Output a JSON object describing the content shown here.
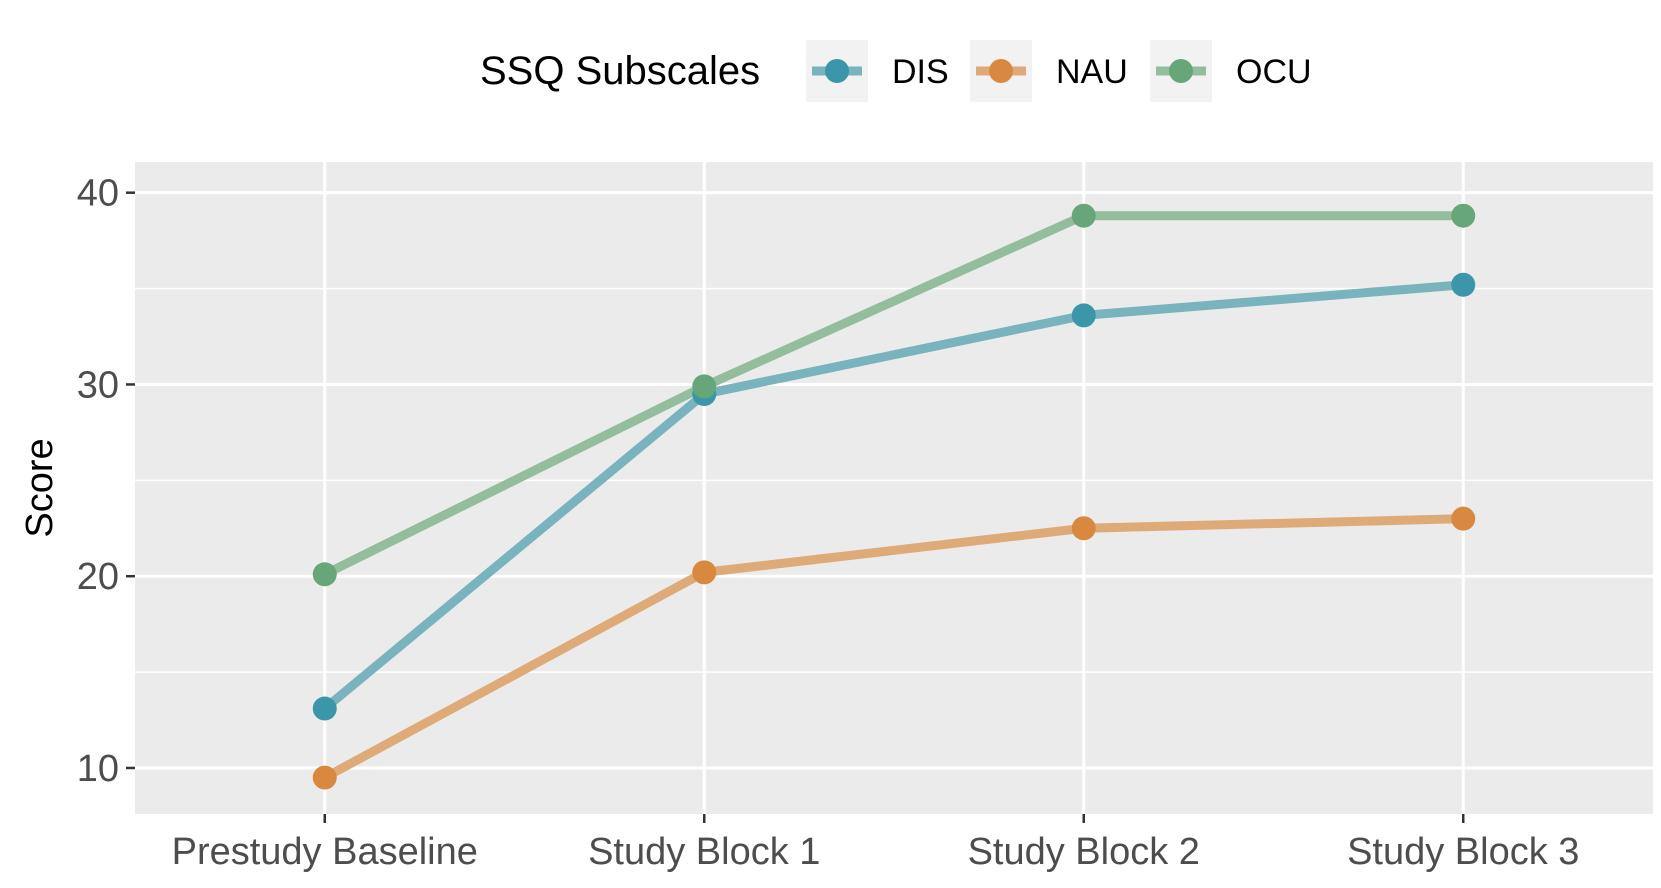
{
  "chart_data": {
    "type": "line",
    "title": "",
    "xlabel": "",
    "ylabel": "Score",
    "categories": [
      "Prestudy Baseline",
      "Study Block 1",
      "Study Block 2",
      "Study Block 3"
    ],
    "ylim": [
      7.6,
      41.6
    ],
    "yticks": [
      10,
      20,
      30,
      40
    ],
    "grid": true,
    "legend": {
      "title": "SSQ Subscales",
      "position": "top"
    },
    "series": [
      {
        "name": "DIS",
        "values": [
          13.1,
          29.5,
          33.6,
          35.2
        ],
        "color": "#3A96A8",
        "line_color": "#78B3BE"
      },
      {
        "name": "NAU",
        "values": [
          9.5,
          20.2,
          22.5,
          23.0
        ],
        "color": "#D9893F",
        "line_color": "#DEAA78"
      },
      {
        "name": "OCU",
        "values": [
          20.1,
          29.9,
          38.8,
          38.8
        ],
        "color": "#66A678",
        "line_color": "#93BD9D"
      }
    ]
  }
}
